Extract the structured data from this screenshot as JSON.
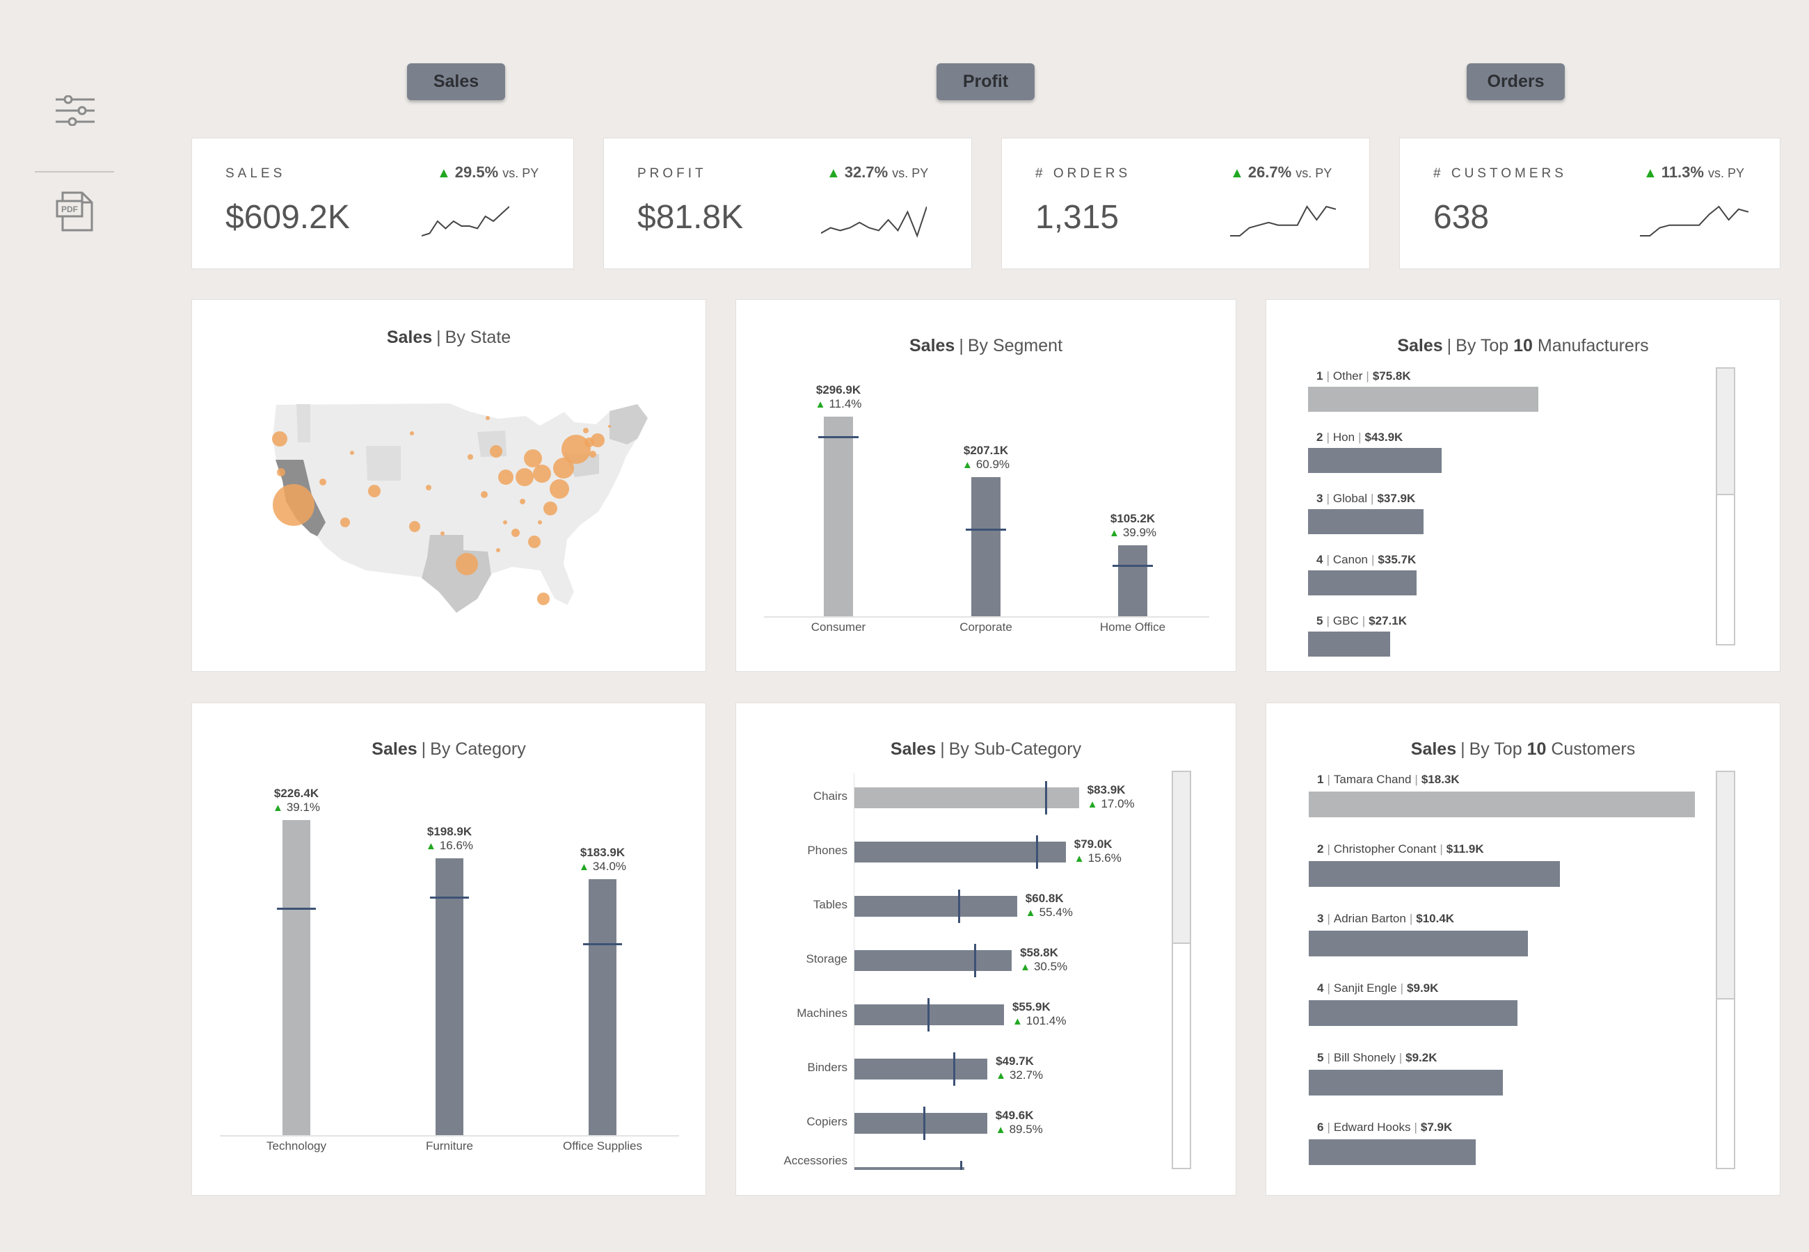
{
  "nav": {
    "buttons": [
      {
        "label": "Sales"
      },
      {
        "label": "Profit"
      },
      {
        "label": "Orders"
      }
    ]
  },
  "sidebar": {
    "icons": [
      "sliders-icon",
      "pdf-icon"
    ],
    "pdf_label": "PDF"
  },
  "kpis": [
    {
      "label": "SALES",
      "value": "$609.2K",
      "delta": "29.5%",
      "vs": "vs. PY"
    },
    {
      "label": "PROFIT",
      "value": "$81.8K",
      "delta": "32.7%",
      "vs": "vs. PY"
    },
    {
      "label": "# ORDERS",
      "value": "1,315",
      "delta": "26.7%",
      "vs": "vs. PY"
    },
    {
      "label": "# CUSTOMERS",
      "value": "638",
      "delta": "11.3%",
      "vs": "vs. PY"
    }
  ],
  "colors": {
    "accent_bar": "#7a818d",
    "highlight_bar": "#b4b6b7",
    "marker": "#3d5275",
    "up_arrow": "#22a822",
    "map_bubble": "#f0a55e"
  },
  "panels": {
    "state": {
      "title_bold": "Sales",
      "sep": "|",
      "title_rest": "By State"
    },
    "segment": {
      "title_bold": "Sales",
      "sep": "|",
      "title_rest": "By Segment"
    },
    "manufacturers": {
      "title_bold": "Sales",
      "sep": "|",
      "title_pre": "By Top",
      "title_num": "10",
      "title_post": "Manufacturers"
    },
    "category": {
      "title_bold": "Sales",
      "sep": "|",
      "title_rest": "By Category"
    },
    "subcategory": {
      "title_bold": "Sales",
      "sep": "|",
      "title_rest": "By Sub-Category"
    },
    "customers": {
      "title_bold": "Sales",
      "sep": "|",
      "title_pre": "By Top",
      "title_num": "10",
      "title_post": "Customers"
    }
  },
  "chart_data": [
    {
      "type": "bar",
      "chart": "segment",
      "categories": [
        "Consumer",
        "Corporate",
        "Home Office"
      ],
      "values": [
        296.9,
        207.1,
        105.2
      ],
      "value_labels": [
        "$296.9K",
        "$207.1K",
        "$105.2K"
      ],
      "growth_labels": [
        "11.4%",
        "60.9%",
        "39.9%"
      ],
      "py_marker": [
        266.5,
        128.7,
        75.2
      ],
      "ylim": [
        0,
        310
      ]
    },
    {
      "type": "bar",
      "chart": "manufacturers",
      "ranks": [
        "1",
        "2",
        "3",
        "4",
        "5"
      ],
      "categories": [
        "Other",
        "Hon",
        "Global",
        "Canon",
        "GBC"
      ],
      "values": [
        75.8,
        43.9,
        37.9,
        35.7,
        27.1
      ],
      "value_labels": [
        "$75.8K",
        "$43.9K",
        "$37.9K",
        "$35.7K",
        "$27.1K"
      ],
      "xlim": [
        0,
        76
      ]
    },
    {
      "type": "bar",
      "chart": "category",
      "categories": [
        "Technology",
        "Furniture",
        "Office Supplies"
      ],
      "values": [
        226.4,
        198.9,
        183.9
      ],
      "value_labels": [
        "$226.4K",
        "$198.9K",
        "$183.9K"
      ],
      "growth_labels": [
        "39.1%",
        "16.6%",
        "34.0%"
      ],
      "py_marker": [
        162.7,
        170.6,
        137.2
      ],
      "ylim": [
        0,
        228
      ]
    },
    {
      "type": "bar",
      "chart": "subcategory",
      "categories": [
        "Chairs",
        "Phones",
        "Tables",
        "Storage",
        "Machines",
        "Binders",
        "Copiers",
        "Accessories"
      ],
      "values": [
        83.9,
        79.0,
        60.8,
        58.8,
        55.9,
        49.7,
        49.6,
        41.0
      ],
      "value_labels": [
        "$83.9K",
        "$79.0K",
        "$60.8K",
        "$58.8K",
        "$55.9K",
        "$49.7K",
        "$49.6K",
        ""
      ],
      "growth_labels": [
        "17.0%",
        "15.6%",
        "55.4%",
        "30.5%",
        "101.4%",
        "32.7%",
        "89.5%",
        ""
      ],
      "py_marker": [
        71.7,
        68.3,
        39.1,
        45.0,
        27.8,
        37.4,
        26.2,
        40.0
      ],
      "xlim": [
        0,
        84
      ]
    },
    {
      "type": "bar",
      "chart": "customers",
      "ranks": [
        "1",
        "2",
        "3",
        "4",
        "5",
        "6"
      ],
      "categories": [
        "Tamara Chand",
        "Christopher Conant",
        "Adrian Barton",
        "Sanjit Engle",
        "Bill Shonely",
        "Edward Hooks"
      ],
      "values": [
        18.3,
        11.9,
        10.4,
        9.9,
        9.2,
        7.9
      ],
      "value_labels": [
        "$18.3K",
        "$11.9K",
        "$10.4K",
        "$9.9K",
        "$9.2K",
        "$7.9K"
      ],
      "xlim": [
        0,
        18.3
      ]
    },
    {
      "type": "line",
      "chart": "sparklines",
      "series": [
        {
          "values": [
            2,
            3,
            8,
            5,
            8,
            6,
            6,
            5,
            10,
            8,
            11,
            14
          ]
        },
        {
          "values": [
            3,
            5,
            4,
            5,
            7,
            5,
            4,
            8,
            4,
            11,
            2,
            13
          ]
        },
        {
          "values": [
            2,
            2,
            5,
            6,
            7,
            6,
            6,
            6,
            13,
            8,
            13,
            12
          ]
        },
        {
          "values": [
            2,
            2,
            5,
            6,
            6,
            6,
            6,
            10,
            13,
            8,
            12,
            11
          ]
        }
      ]
    }
  ]
}
